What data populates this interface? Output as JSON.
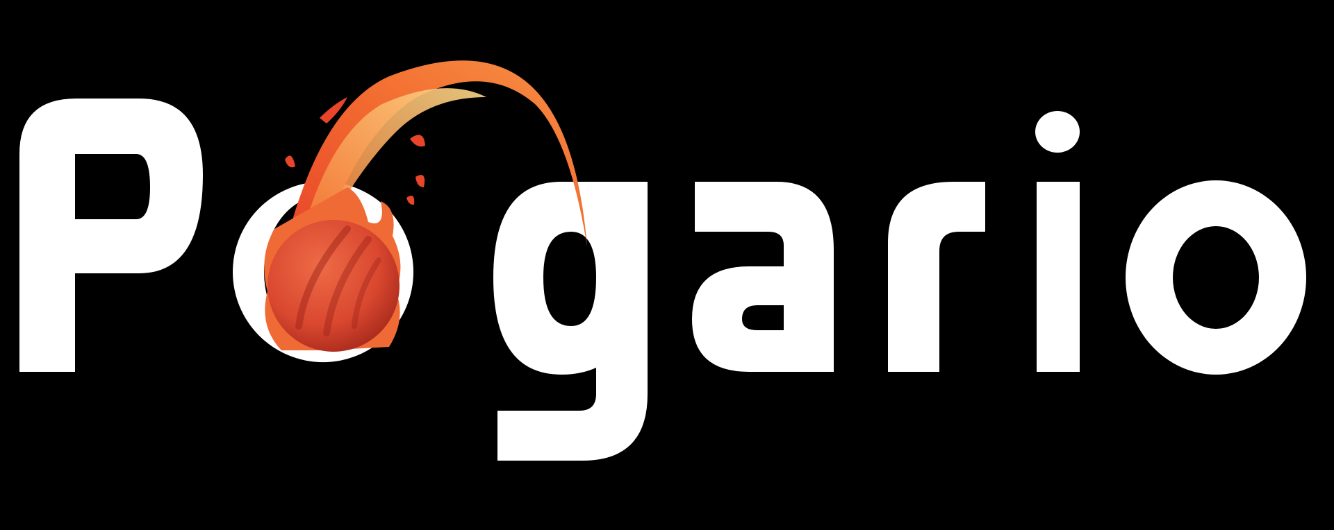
{
  "logo": {
    "wordmark": "Pogario",
    "fireball_icon": "fireball-icon",
    "colors": {
      "background": "#000000",
      "letters": "#ffffff",
      "ball": "#d9472f",
      "flame_outer": "#e8452a",
      "flame_mid": "#f47a35",
      "flame_inner": "#fbd07a"
    }
  }
}
